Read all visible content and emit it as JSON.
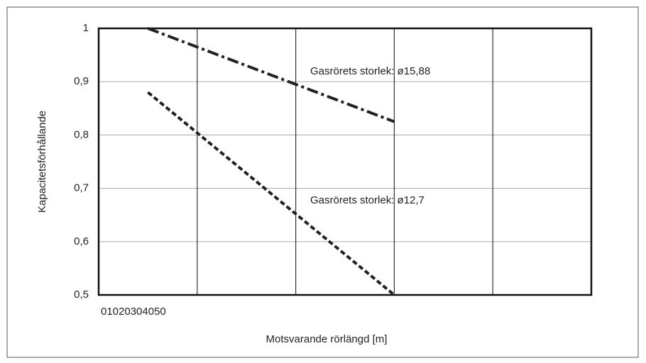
{
  "chart_data": {
    "type": "line",
    "x_label": "Motsvarande rörlängd [m]",
    "y_label": "Kapacitetsförhållande",
    "xlim": [
      0,
      50
    ],
    "xticks": [
      0,
      10,
      20,
      30,
      40,
      50
    ],
    "ylim": [
      0.5,
      1
    ],
    "yticks": [
      {
        "value": 0.5,
        "label": "0,5"
      },
      {
        "value": 0.6,
        "label": "0,6"
      },
      {
        "value": 0.7,
        "label": "0,7"
      },
      {
        "value": 0.8,
        "label": "0,8"
      },
      {
        "value": 0.9,
        "label": "0,9"
      },
      1
    ],
    "grid": true,
    "series": [
      {
        "name": "Gasrörets storlek: ø15,88",
        "color": "#222222",
        "style": "dashdot",
        "x": [
          5,
          30
        ],
        "values": [
          1,
          0.825
        ]
      },
      {
        "name": "Gasrörets storlek: ø12,7",
        "color": "#222222",
        "style": "dashed",
        "x": [
          5,
          30
        ],
        "values": [
          0.88,
          0.5
        ]
      }
    ]
  }
}
